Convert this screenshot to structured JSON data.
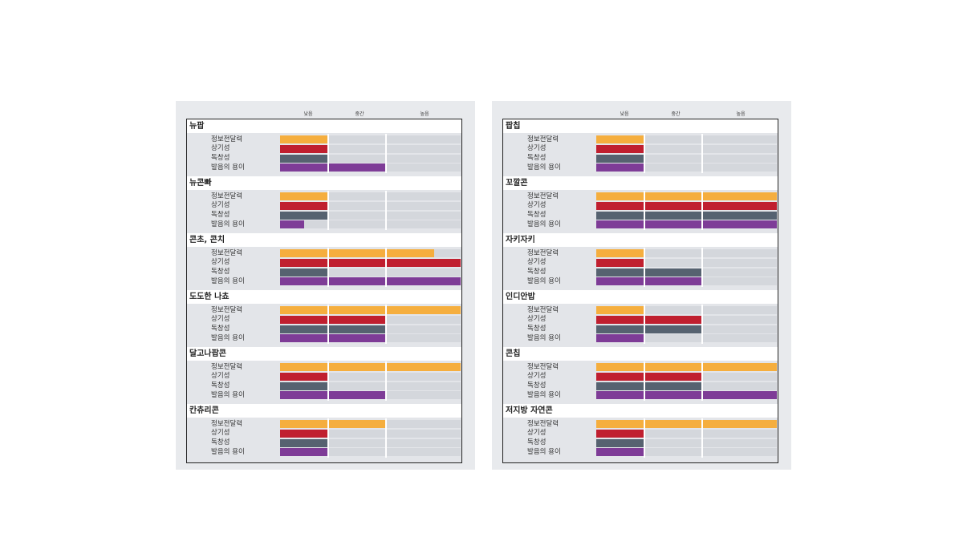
{
  "colors": {
    "정보전달력": "#f5ae3e",
    "상기성": "#c01f2f",
    "독창성": "#566270",
    "발음의 용이": "#7e3c97",
    "track": "#d4d7dc",
    "panel": "#e8eaed"
  },
  "headers": [
    "낮음",
    "중간",
    "높음"
  ],
  "metrics": [
    "정보전달력",
    "상기성",
    "독창성",
    "발음의 용이"
  ],
  "chart_data": [
    {
      "type": "bar",
      "scale": [
        "낮음",
        "중간",
        "높음"
      ],
      "groups": [
        {
          "name": "뉴팝",
          "values": [
            1,
            1,
            1,
            2
          ]
        },
        {
          "name": "뉴콘빠",
          "values": [
            1,
            1,
            1,
            0.5
          ]
        },
        {
          "name": "콘초, 콘치",
          "values": [
            2.65,
            3,
            1,
            3
          ]
        },
        {
          "name": "도도한 나쵸",
          "values": [
            3,
            2,
            2,
            2
          ]
        },
        {
          "name": "달고나팝콘",
          "values": [
            3,
            1,
            1,
            2
          ]
        },
        {
          "name": "칸츄리콘",
          "values": [
            2,
            1,
            1,
            1
          ]
        }
      ]
    },
    {
      "type": "bar",
      "scale": [
        "낮음",
        "중간",
        "높음"
      ],
      "groups": [
        {
          "name": "팝칩",
          "values": [
            1,
            1,
            1,
            1
          ]
        },
        {
          "name": "꼬깔콘",
          "values": [
            3,
            3,
            3,
            3
          ]
        },
        {
          "name": "자키자키",
          "values": [
            1,
            1,
            2,
            2
          ]
        },
        {
          "name": "인디안밥",
          "values": [
            1,
            2,
            2,
            1
          ]
        },
        {
          "name": "콘칩",
          "values": [
            3,
            2,
            2,
            3
          ]
        },
        {
          "name": "저지방 자연콘",
          "values": [
            3,
            1,
            1,
            1
          ]
        }
      ]
    }
  ]
}
